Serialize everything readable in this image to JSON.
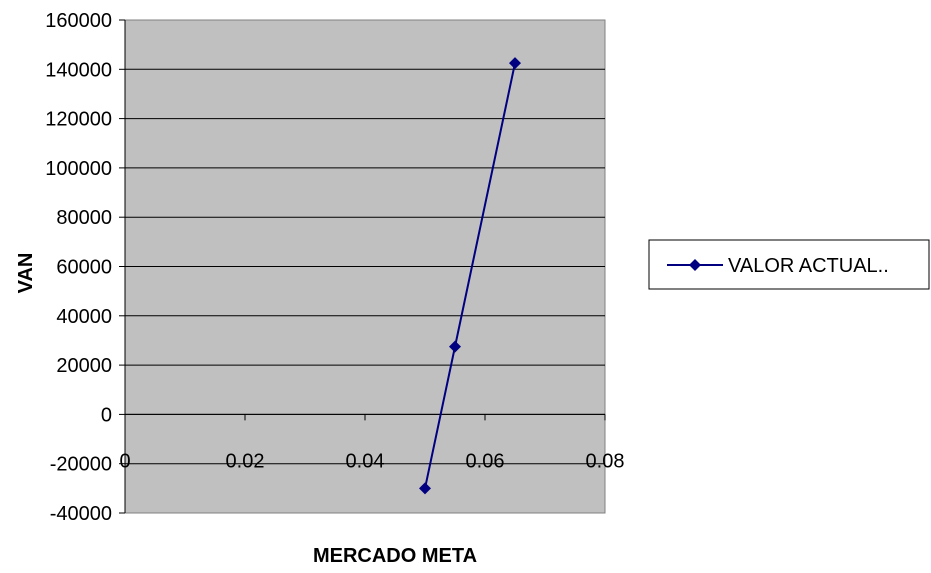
{
  "chart_data": {
    "type": "scatter",
    "title": "",
    "xlabel": "MERCADO META",
    "ylabel": "VAN",
    "xlim": [
      0,
      0.08
    ],
    "ylim": [
      -40000,
      160000
    ],
    "x_ticks": [
      0,
      0.02,
      0.04,
      0.06,
      0.08
    ],
    "x_tick_labels": [
      "0",
      "0.02",
      "0.04",
      "0.06",
      "0.08"
    ],
    "y_ticks": [
      -40000,
      -20000,
      0,
      20000,
      40000,
      60000,
      80000,
      100000,
      120000,
      140000,
      160000
    ],
    "y_tick_labels": [
      "-40000",
      "-20000",
      "0",
      "20000",
      "40000",
      "60000",
      "80000",
      "100000",
      "120000",
      "140000",
      "160000"
    ],
    "grid": "horizontal",
    "plot_background": "#c0c0c0",
    "legend_position": "right",
    "series": [
      {
        "name": "VALOR ACTUAL..",
        "color": "#000080",
        "marker": "diamond",
        "connected": true,
        "x": [
          0.05,
          0.055,
          0.065
        ],
        "y": [
          -30000,
          27500,
          142500
        ]
      }
    ]
  }
}
